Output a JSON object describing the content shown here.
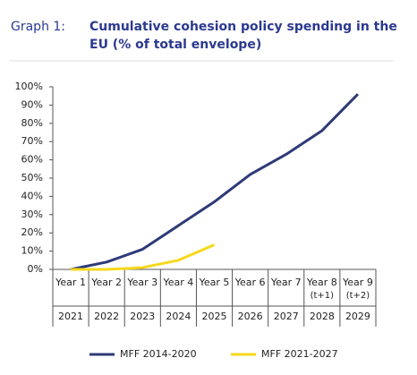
{
  "chart_data": {
    "type": "line",
    "label": "Graph 1:",
    "title_lines": [
      "Cumulative cohesion policy spending in the",
      "EU (% of total envelope)"
    ],
    "categories": [
      "Year 1",
      "Year 2",
      "Year 3",
      "Year 4",
      "Year 5",
      "Year 6",
      "Year 7",
      "Year 8",
      "Year 9"
    ],
    "sublabels": [
      null,
      null,
      null,
      null,
      null,
      null,
      null,
      "(t+1)",
      "(t+2)"
    ],
    "years": [
      "2021",
      "2022",
      "2023",
      "2024",
      "2025",
      "2026",
      "2027",
      "2028",
      "2029"
    ],
    "series": [
      {
        "name": "MFF 2014-2020",
        "color": "#2e3a78",
        "values": [
          0,
          4,
          11,
          24,
          37,
          52,
          63,
          76,
          96
        ]
      },
      {
        "name": "MFF 2021-2027",
        "color": "#f7d81b",
        "values": [
          0,
          0,
          1,
          5,
          13.5,
          null,
          null,
          null,
          null
        ]
      }
    ],
    "ylim": [
      0,
      100
    ],
    "yticks": [
      {
        "value": 0,
        "label": "0%"
      },
      {
        "value": 10,
        "label": "10%"
      },
      {
        "value": 20,
        "label": "20%"
      },
      {
        "value": 30,
        "label": "30%"
      },
      {
        "value": 40,
        "label": "40%"
      },
      {
        "value": 50,
        "label": "50%"
      },
      {
        "value": 60,
        "label": "60%"
      },
      {
        "value": 70,
        "label": "70%"
      },
      {
        "value": 80,
        "label": "80%"
      },
      {
        "value": 90,
        "label": "90%"
      },
      {
        "value": 100,
        "label": "100%"
      }
    ]
  }
}
